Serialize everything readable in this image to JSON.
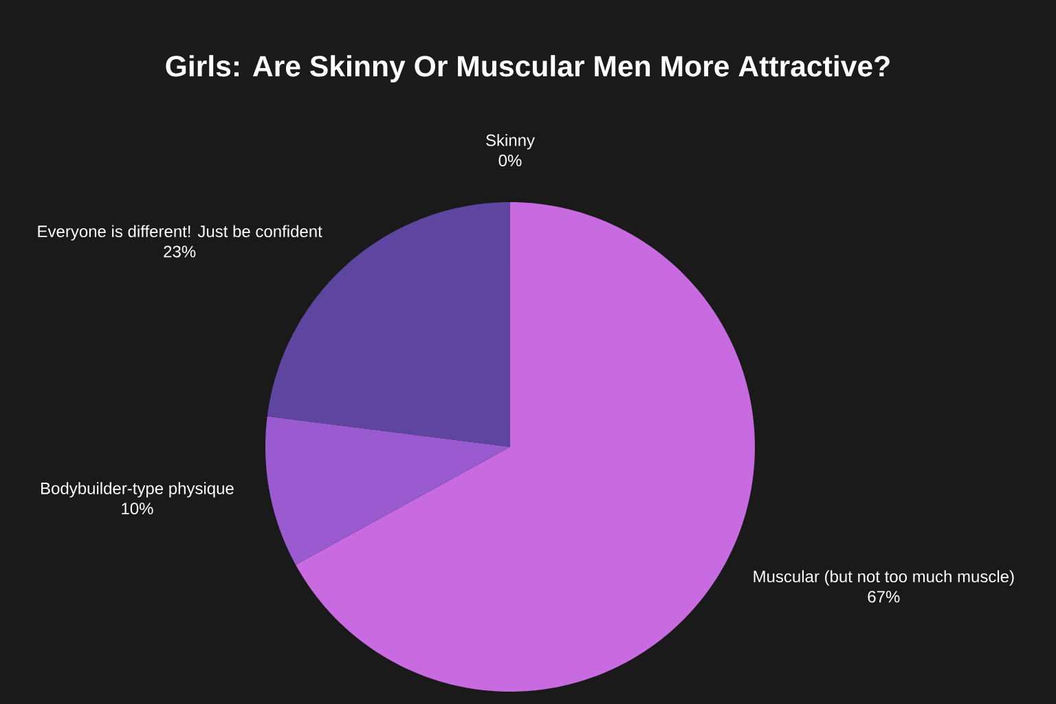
{
  "chart_data": {
    "type": "pie",
    "title": "Girls: Are Skinny Or Muscular Men More Attractive?",
    "categories": [
      "Skinny",
      "Muscular (but not too much muscle)",
      "Bodybuilder-type physique",
      "Everyone is different! Just be confident"
    ],
    "values": [
      0,
      67,
      10,
      23
    ],
    "value_labels": [
      "0%",
      "67%",
      "10%",
      "23%"
    ],
    "colors": [
      "#e06ad8",
      "#c86be0",
      "#9a5bd0",
      "#5e45a0"
    ]
  }
}
